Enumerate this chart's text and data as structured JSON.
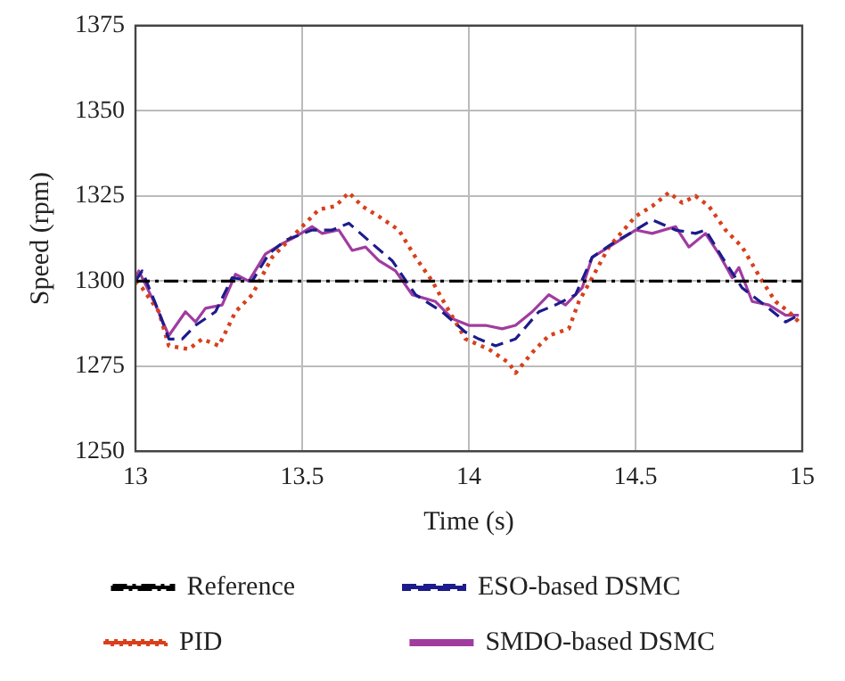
{
  "chart_data": {
    "type": "line",
    "xlabel": "Time (s)",
    "ylabel": "Speed (rpm)",
    "xlim": [
      13,
      15
    ],
    "xticks": [
      13,
      13.5,
      14,
      14.5,
      15
    ],
    "ylim": [
      1250,
      1375
    ],
    "yticks": [
      1250,
      1275,
      1300,
      1325,
      1350,
      1375
    ],
    "grid": true,
    "legend": "bottom",
    "marker": "none",
    "series": [
      {
        "name": "Reference",
        "color": "#000000",
        "line_style": "dashdot",
        "x": [
          13,
          15
        ],
        "values": [
          1300,
          1300
        ]
      },
      {
        "name": "ESO-based DSMC",
        "color": "#1c1c8c",
        "line_style": "dashed",
        "x": [
          13,
          13.02,
          13.07,
          13.1,
          13.14,
          13.18,
          13.24,
          13.29,
          13.35,
          13.4,
          13.45,
          13.53,
          13.59,
          13.64,
          13.71,
          13.77,
          13.84,
          13.92,
          13.99,
          14.03,
          14.08,
          14.14,
          14.21,
          14.26,
          14.32,
          14.37,
          14.43,
          14.5,
          14.55,
          14.62,
          14.68,
          14.71,
          14.76,
          14.82,
          14.9,
          14.95,
          14.99
        ],
        "values": [
          1300,
          1303,
          1291,
          1283,
          1283,
          1287,
          1291,
          1301,
          1300,
          1308,
          1312,
          1315,
          1315,
          1317,
          1311,
          1306,
          1296,
          1291,
          1285,
          1283,
          1281,
          1283,
          1291,
          1293,
          1296,
          1307,
          1311,
          1315,
          1318,
          1315,
          1314,
          1315,
          1307,
          1298,
          1292,
          1288,
          1290
        ]
      },
      {
        "name": "PID",
        "color": "#d8401c",
        "line_style": "dotted",
        "x": [
          13,
          13.02,
          13.07,
          13.1,
          13.16,
          13.2,
          13.25,
          13.3,
          13.35,
          13.41,
          13.48,
          13.55,
          13.6,
          13.64,
          13.68,
          13.73,
          13.79,
          13.84,
          13.89,
          13.93,
          13.99,
          14.06,
          14.12,
          14.14,
          14.19,
          14.24,
          14.3,
          14.33,
          14.37,
          14.42,
          14.5,
          14.55,
          14.6,
          14.64,
          14.68,
          14.72,
          14.77,
          14.82,
          14.88,
          14.92,
          14.96,
          14.99
        ],
        "values": [
          1300,
          1298,
          1291,
          1281,
          1280,
          1283,
          1281,
          1291,
          1296,
          1307,
          1314,
          1321,
          1322,
          1326,
          1322,
          1319,
          1315,
          1307,
          1300,
          1293,
          1283,
          1280,
          1276,
          1273,
          1279,
          1284,
          1286,
          1294,
          1301,
          1310,
          1319,
          1322,
          1326,
          1323,
          1325,
          1322,
          1315,
          1310,
          1300,
          1294,
          1291,
          1288
        ]
      },
      {
        "name": "SMDO-based DSMC",
        "color": "#a03ca0",
        "line_style": "solid",
        "x": [
          13,
          13.01,
          13.06,
          13.1,
          13.15,
          13.18,
          13.21,
          13.26,
          13.3,
          13.34,
          13.39,
          13.44,
          13.48,
          13.53,
          13.56,
          13.61,
          13.65,
          13.69,
          13.73,
          13.78,
          13.83,
          13.9,
          13.95,
          14,
          14.05,
          14.1,
          14.14,
          14.19,
          14.24,
          14.29,
          14.34,
          14.37,
          14.42,
          14.5,
          14.55,
          14.62,
          14.66,
          14.71,
          14.75,
          14.79,
          14.81,
          14.85,
          14.9,
          14.95,
          14.99
        ],
        "values": [
          1301,
          1303,
          1293,
          1284,
          1291,
          1288,
          1292,
          1293,
          1302,
          1300,
          1308,
          1311,
          1313,
          1316,
          1314,
          1315,
          1309,
          1310,
          1306,
          1303,
          1296,
          1294,
          1289,
          1287,
          1287,
          1286,
          1287,
          1291,
          1296,
          1293,
          1298,
          1307,
          1310,
          1315,
          1314,
          1316,
          1310,
          1314,
          1308,
          1301,
          1304,
          1294,
          1293,
          1290,
          1290
        ]
      }
    ]
  }
}
